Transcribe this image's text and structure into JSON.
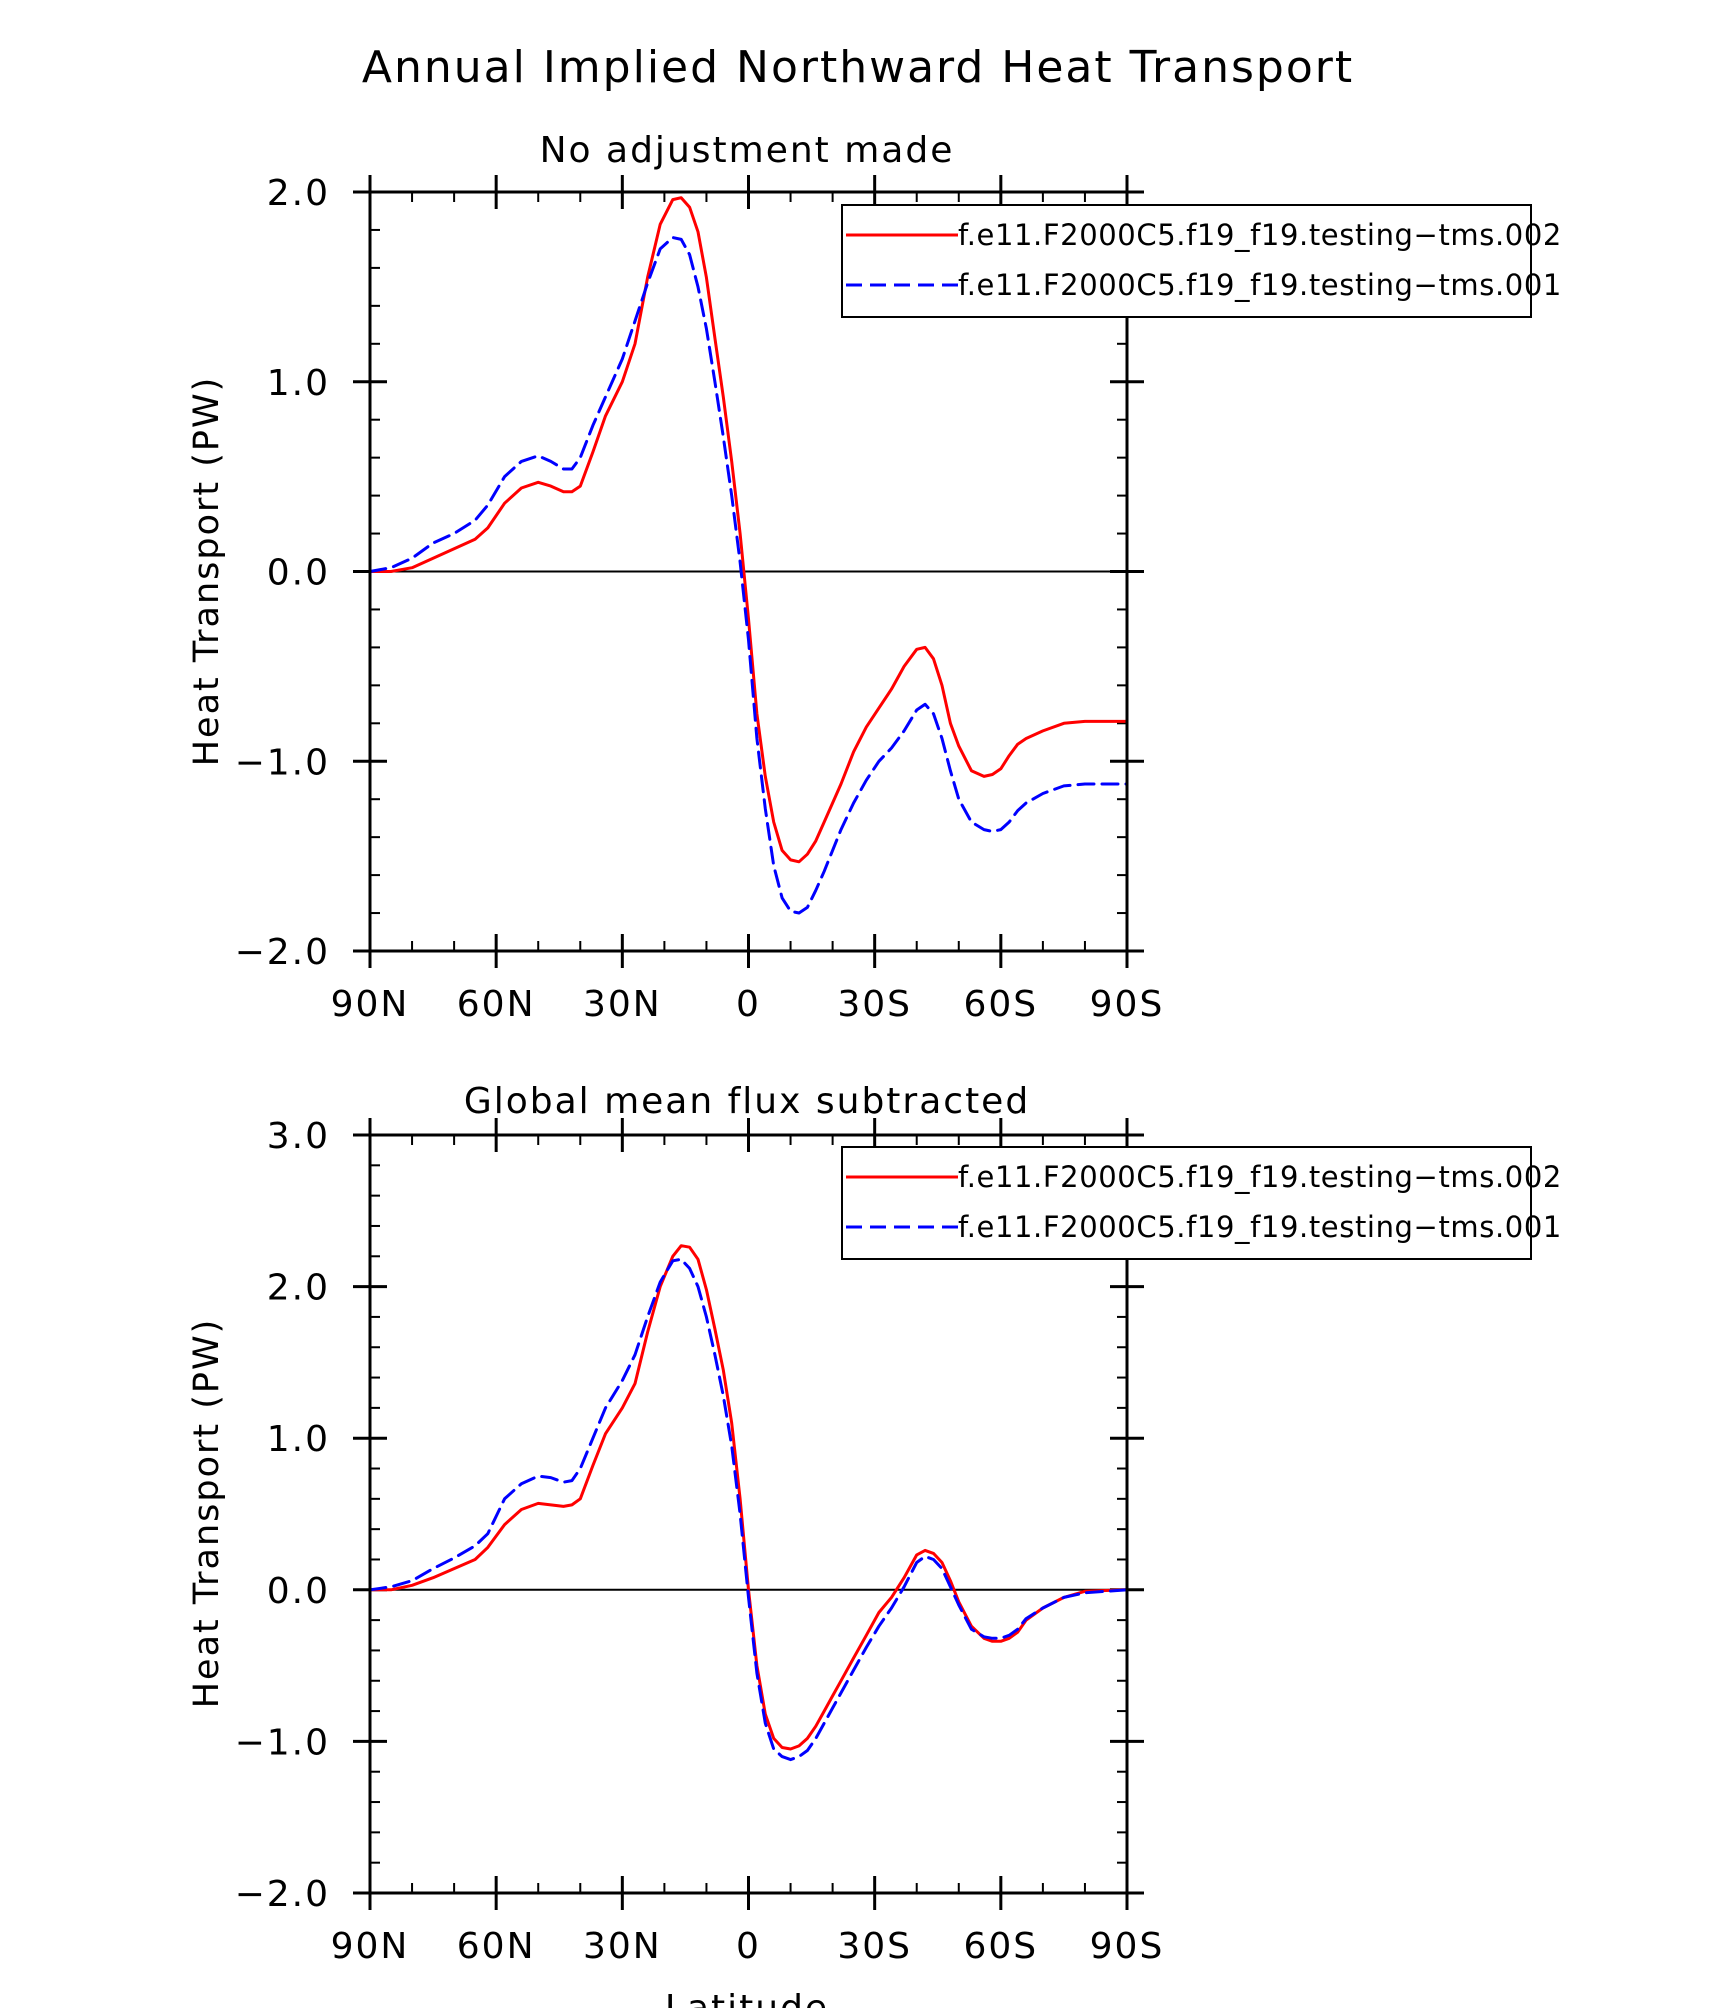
{
  "page": {
    "title": "Annual Implied Northward Heat Transport"
  },
  "chart_data": [
    {
      "type": "line",
      "title": "No adjustment made",
      "xlabel": "",
      "ylabel": "Heat Transport (PW)",
      "xlim": [
        -90,
        90
      ],
      "ylim": [
        -2.0,
        2.0
      ],
      "x_note": "latitude; negative = north, positive = south",
      "x_ticks": [
        -90,
        -60,
        -30,
        0,
        30,
        60,
        90
      ],
      "x_tick_labels": [
        "90N",
        "60N",
        "30N",
        "0",
        "30S",
        "60S",
        "90S"
      ],
      "y_ticks": [
        -2.0,
        -1.0,
        0.0,
        1.0,
        2.0
      ],
      "y_tick_labels": [
        "−2.0",
        "−1.0",
        "0.0",
        "1.0",
        "2.0"
      ],
      "zero_line": true,
      "legend_position": "top-right",
      "series": [
        {
          "name": "f.e11.F2000C5.f19_f19.testing−tms.002",
          "color": "#ff0000",
          "dash": "solid",
          "x": [
            -90,
            -85,
            -80,
            -75,
            -70,
            -65,
            -62,
            -58,
            -54,
            -50,
            -47,
            -44,
            -42,
            -40,
            -37,
            -34,
            -30,
            -27,
            -24,
            -21,
            -18,
            -16,
            -14,
            -12,
            -10,
            -8,
            -6,
            -4,
            -2,
            0,
            2,
            4,
            6,
            8,
            10,
            12,
            14,
            16,
            18,
            20,
            22,
            25,
            28,
            31,
            34,
            37,
            40,
            42,
            44,
            46,
            48,
            50,
            53,
            56,
            58,
            60,
            62,
            64,
            66,
            70,
            75,
            80,
            90
          ],
          "y": [
            0.0,
            0.0,
            0.02,
            0.07,
            0.12,
            0.17,
            0.23,
            0.36,
            0.44,
            0.47,
            0.45,
            0.42,
            0.42,
            0.45,
            0.63,
            0.82,
            1.0,
            1.2,
            1.55,
            1.83,
            1.96,
            1.97,
            1.92,
            1.79,
            1.55,
            1.23,
            0.92,
            0.58,
            0.2,
            -0.25,
            -0.75,
            -1.08,
            -1.32,
            -1.47,
            -1.52,
            -1.53,
            -1.49,
            -1.42,
            -1.32,
            -1.22,
            -1.12,
            -0.95,
            -0.82,
            -0.72,
            -0.62,
            -0.5,
            -0.41,
            -0.4,
            -0.46,
            -0.6,
            -0.8,
            -0.92,
            -1.05,
            -1.08,
            -1.07,
            -1.04,
            -0.97,
            -0.91,
            -0.88,
            -0.84,
            -0.8,
            -0.79,
            -0.79
          ]
        },
        {
          "name": "f.e11.F2000C5.f19_f19.testing−tms.001",
          "color": "#0000ff",
          "dash": "dashed",
          "x": [
            -90,
            -85,
            -80,
            -75,
            -70,
            -65,
            -62,
            -58,
            -54,
            -50,
            -47,
            -44,
            -42,
            -40,
            -37,
            -34,
            -30,
            -27,
            -24,
            -21,
            -18,
            -16,
            -14,
            -12,
            -10,
            -8,
            -6,
            -4,
            -2,
            0,
            2,
            4,
            6,
            8,
            10,
            12,
            14,
            16,
            18,
            20,
            22,
            25,
            28,
            31,
            34,
            37,
            40,
            42,
            44,
            46,
            48,
            50,
            53,
            56,
            58,
            60,
            62,
            64,
            66,
            70,
            75,
            80,
            90
          ],
          "y": [
            0.0,
            0.02,
            0.07,
            0.15,
            0.2,
            0.27,
            0.35,
            0.5,
            0.58,
            0.61,
            0.58,
            0.54,
            0.54,
            0.6,
            0.77,
            0.92,
            1.12,
            1.32,
            1.52,
            1.7,
            1.76,
            1.75,
            1.67,
            1.5,
            1.28,
            1.0,
            0.71,
            0.4,
            0.05,
            -0.36,
            -0.88,
            -1.25,
            -1.55,
            -1.72,
            -1.79,
            -1.8,
            -1.77,
            -1.68,
            -1.58,
            -1.47,
            -1.36,
            -1.22,
            -1.1,
            -1.0,
            -0.93,
            -0.84,
            -0.73,
            -0.7,
            -0.75,
            -0.88,
            -1.05,
            -1.2,
            -1.32,
            -1.36,
            -1.37,
            -1.36,
            -1.32,
            -1.26,
            -1.22,
            -1.17,
            -1.13,
            -1.12,
            -1.12
          ]
        }
      ]
    },
    {
      "type": "line",
      "title": "Global mean flux subtracted",
      "xlabel": "Latitude",
      "ylabel": "Heat Transport (PW)",
      "xlim": [
        -90,
        90
      ],
      "ylim": [
        -2.0,
        3.0
      ],
      "x_note": "latitude; negative = north, positive = south",
      "x_ticks": [
        -90,
        -60,
        -30,
        0,
        30,
        60,
        90
      ],
      "x_tick_labels": [
        "90N",
        "60N",
        "30N",
        "0",
        "30S",
        "60S",
        "90S"
      ],
      "y_ticks": [
        -2.0,
        -1.0,
        0.0,
        1.0,
        2.0,
        3.0
      ],
      "y_tick_labels": [
        "−2.0",
        "−1.0",
        "0.0",
        "1.0",
        "2.0",
        "3.0"
      ],
      "zero_line": true,
      "legend_position": "top-right",
      "series": [
        {
          "name": "f.e11.F2000C5.f19_f19.testing−tms.002",
          "color": "#ff0000",
          "dash": "solid",
          "x": [
            -90,
            -85,
            -80,
            -75,
            -70,
            -65,
            -62,
            -58,
            -54,
            -50,
            -47,
            -44,
            -42,
            -40,
            -37,
            -34,
            -30,
            -27,
            -24,
            -21,
            -18,
            -16,
            -14,
            -12,
            -10,
            -8,
            -6,
            -4,
            -2,
            0,
            2,
            4,
            6,
            8,
            10,
            12,
            14,
            16,
            18,
            20,
            22,
            25,
            28,
            31,
            34,
            37,
            40,
            42,
            44,
            46,
            48,
            50,
            53,
            56,
            58,
            60,
            62,
            64,
            66,
            70,
            75,
            80,
            90
          ],
          "y": [
            0.0,
            0.0,
            0.03,
            0.08,
            0.14,
            0.2,
            0.28,
            0.43,
            0.53,
            0.57,
            0.56,
            0.55,
            0.56,
            0.6,
            0.82,
            1.03,
            1.2,
            1.36,
            1.7,
            2.0,
            2.2,
            2.27,
            2.26,
            2.18,
            1.98,
            1.72,
            1.45,
            1.1,
            0.6,
            0.0,
            -0.5,
            -0.82,
            -0.98,
            -1.04,
            -1.05,
            -1.03,
            -0.98,
            -0.9,
            -0.8,
            -0.7,
            -0.6,
            -0.45,
            -0.3,
            -0.15,
            -0.05,
            0.08,
            0.23,
            0.26,
            0.24,
            0.18,
            0.06,
            -0.08,
            -0.24,
            -0.32,
            -0.34,
            -0.34,
            -0.32,
            -0.28,
            -0.2,
            -0.12,
            -0.05,
            -0.01,
            0.0
          ]
        },
        {
          "name": "f.e11.F2000C5.f19_f19.testing−tms.001",
          "color": "#0000ff",
          "dash": "dashed",
          "x": [
            -90,
            -85,
            -80,
            -75,
            -70,
            -65,
            -62,
            -58,
            -54,
            -50,
            -47,
            -44,
            -42,
            -40,
            -37,
            -34,
            -30,
            -27,
            -24,
            -21,
            -18,
            -16,
            -14,
            -12,
            -10,
            -8,
            -6,
            -4,
            -2,
            0,
            2,
            4,
            6,
            8,
            10,
            12,
            14,
            16,
            18,
            20,
            22,
            25,
            28,
            31,
            34,
            37,
            40,
            42,
            44,
            46,
            48,
            50,
            53,
            56,
            58,
            60,
            62,
            64,
            66,
            70,
            75,
            80,
            90
          ],
          "y": [
            0.0,
            0.02,
            0.06,
            0.14,
            0.21,
            0.29,
            0.37,
            0.6,
            0.7,
            0.75,
            0.74,
            0.71,
            0.72,
            0.8,
            1.0,
            1.2,
            1.38,
            1.55,
            1.8,
            2.03,
            2.17,
            2.18,
            2.12,
            2.0,
            1.8,
            1.55,
            1.28,
            0.95,
            0.5,
            -0.05,
            -0.55,
            -0.88,
            -1.05,
            -1.1,
            -1.12,
            -1.1,
            -1.06,
            -0.98,
            -0.88,
            -0.78,
            -0.68,
            -0.53,
            -0.38,
            -0.24,
            -0.12,
            0.02,
            0.18,
            0.22,
            0.2,
            0.14,
            0.02,
            -0.1,
            -0.26,
            -0.31,
            -0.32,
            -0.32,
            -0.3,
            -0.26,
            -0.19,
            -0.12,
            -0.05,
            -0.02,
            0.0
          ]
        }
      ]
    }
  ]
}
